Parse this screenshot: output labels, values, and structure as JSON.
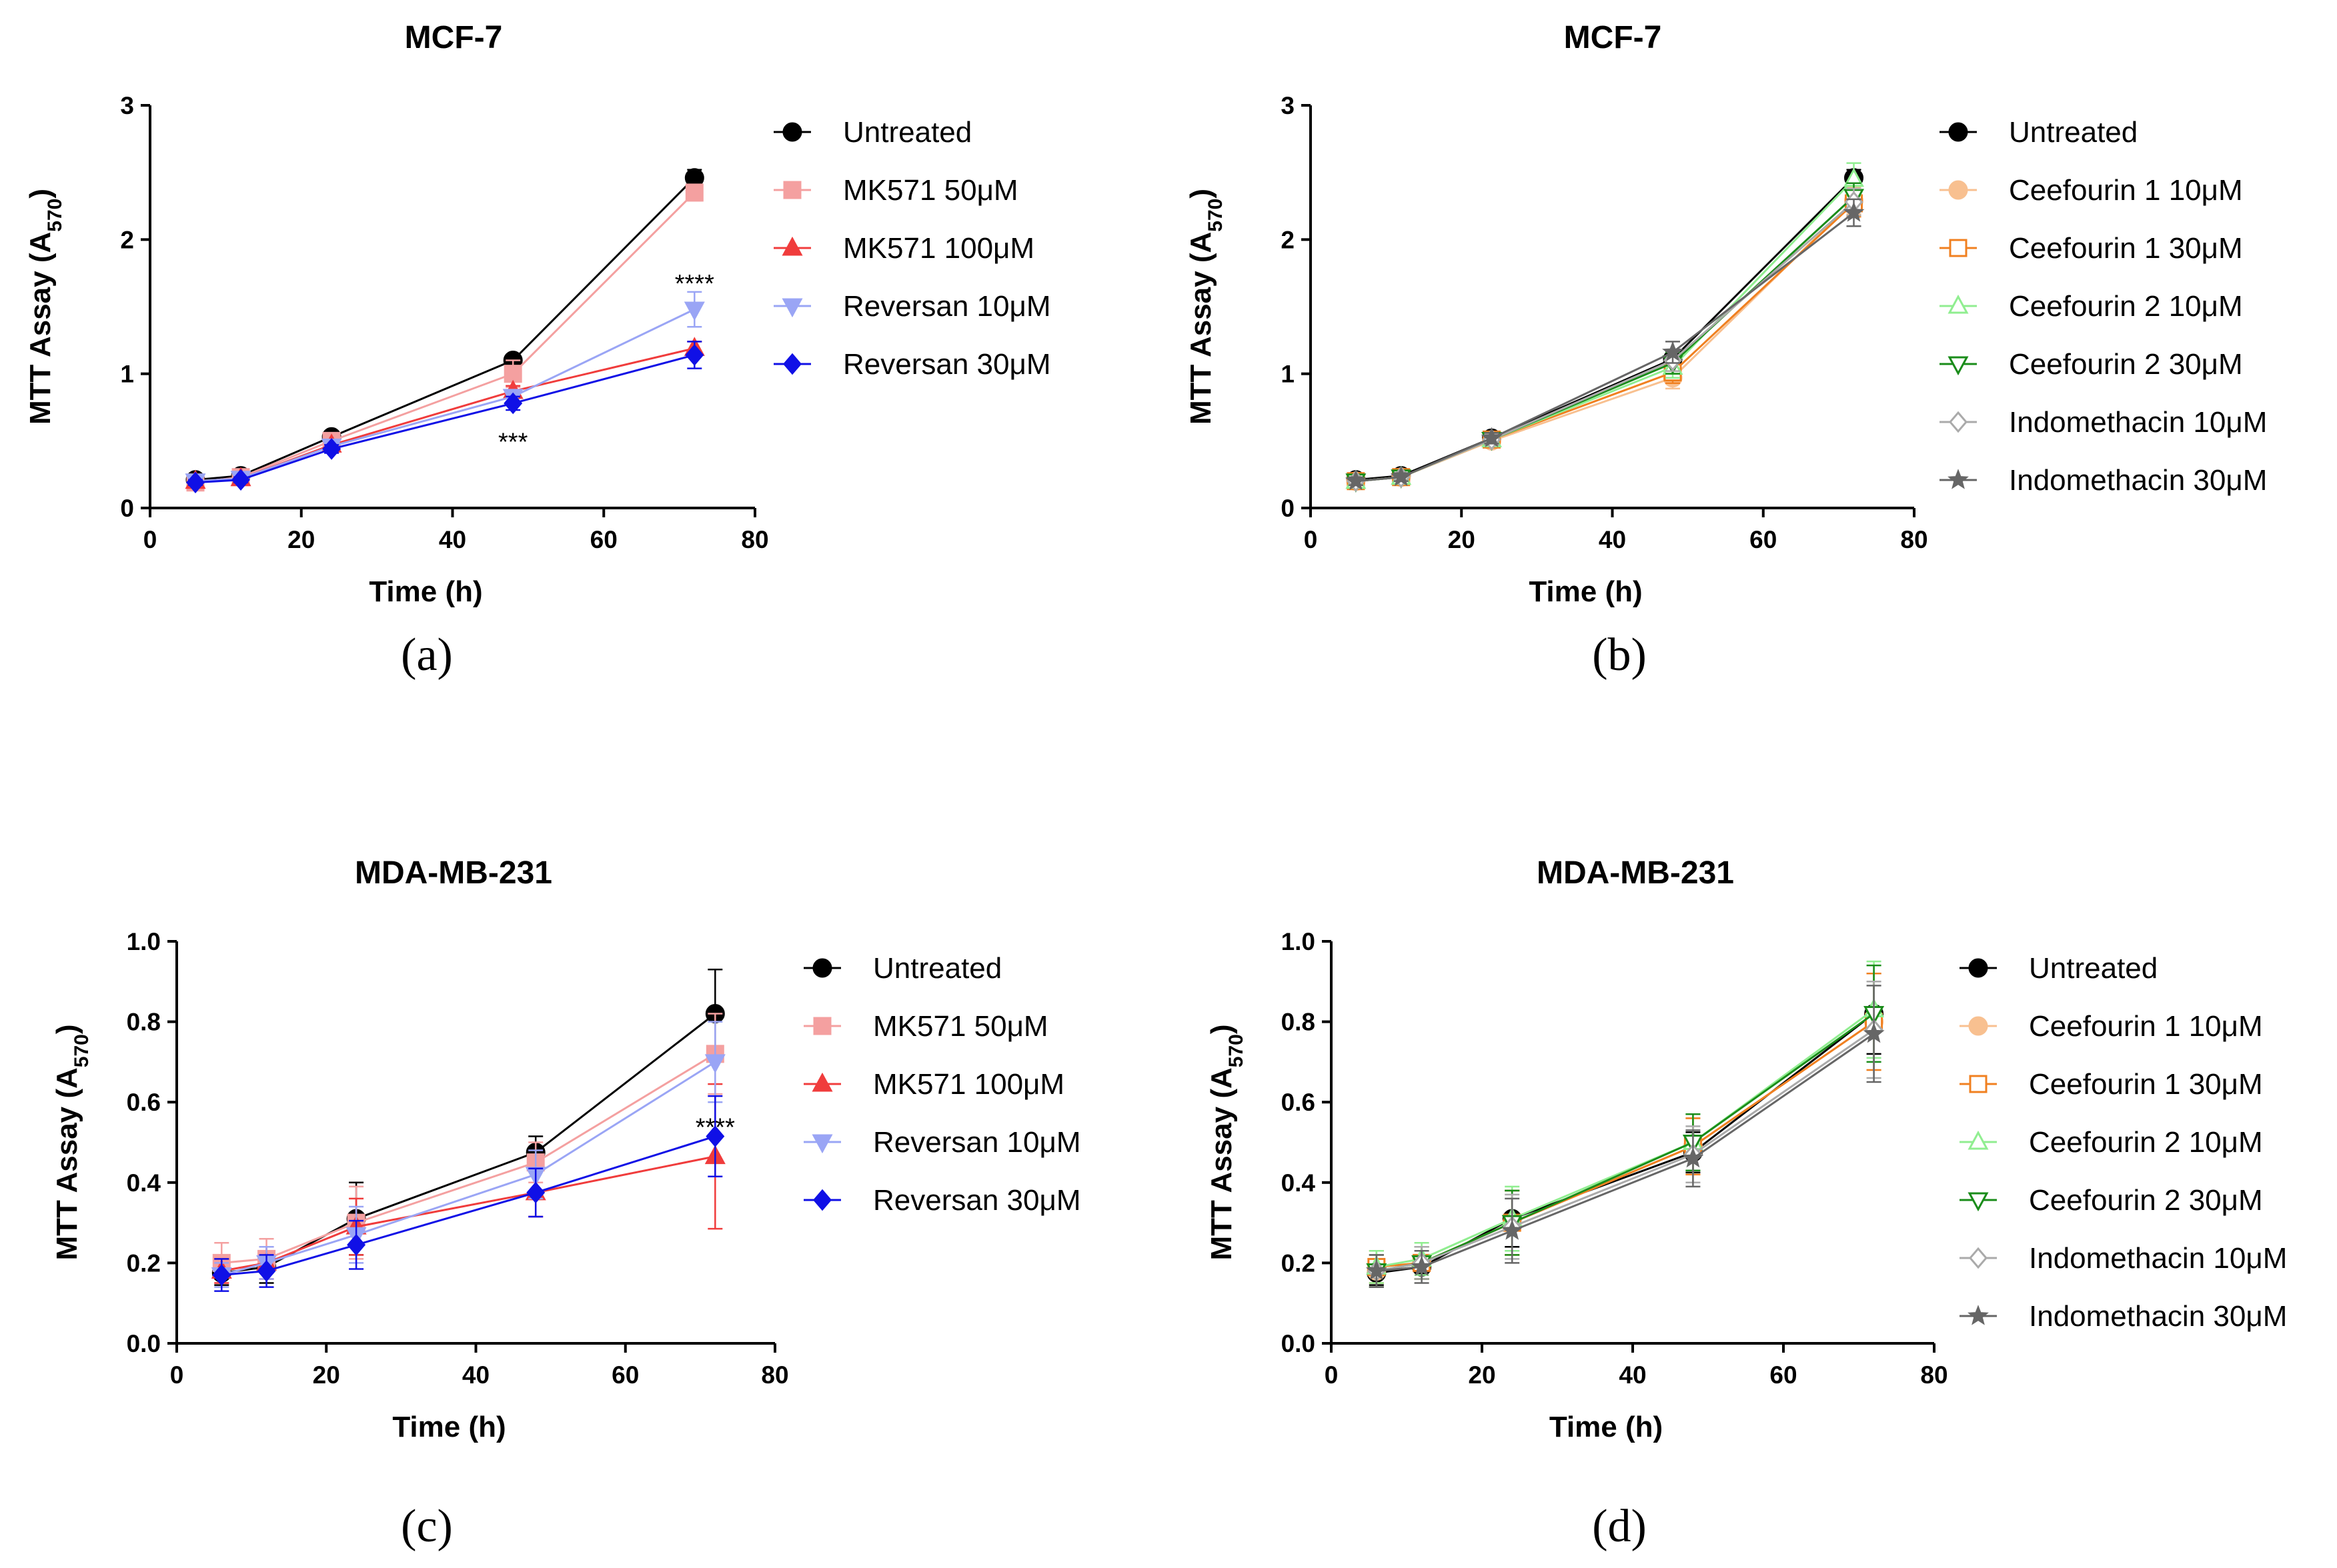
{
  "chart_data": [
    {
      "panel": "(a)",
      "type": "line",
      "title": "MCF-7",
      "xlabel": "Time (h)",
      "ylabel": "MTT Assay (A",
      "ylabel_sub": "570",
      "ylabel_close": ")",
      "xlim": [
        0,
        80
      ],
      "ylim": [
        0,
        3
      ],
      "xticks": [
        0,
        20,
        40,
        60,
        80
      ],
      "yticks": [
        0,
        1,
        2,
        3
      ],
      "x": [
        6,
        12,
        24,
        48,
        72
      ],
      "series": [
        {
          "name": "Untreated",
          "color": "#000000",
          "marker": "circle",
          "values": [
            0.21,
            0.24,
            0.53,
            1.1,
            2.46
          ],
          "errors": [
            0.03,
            0.03,
            0.04,
            0.04,
            0.06
          ]
        },
        {
          "name": "MK571 50μM",
          "color": "#f4a0a0",
          "marker": "square",
          "values": [
            0.19,
            0.23,
            0.5,
            1.0,
            2.35
          ],
          "errors": [
            0.02,
            0.02,
            0.03,
            0.1,
            0.06
          ]
        },
        {
          "name": "MK571 100μM",
          "color": "#f03c3c",
          "marker": "triangle",
          "values": [
            0.2,
            0.22,
            0.47,
            0.87,
            1.19
          ],
          "errors": [
            0.02,
            0.02,
            0.03,
            0.04,
            0.05
          ]
        },
        {
          "name": "Reversan 10μM",
          "color": "#9aa5f5",
          "marker": "triangle-down",
          "values": [
            0.2,
            0.22,
            0.46,
            0.83,
            1.48
          ],
          "errors": [
            0.02,
            0.02,
            0.03,
            0.05,
            0.13
          ]
        },
        {
          "name": "Reversan 30μM",
          "color": "#1010e6",
          "marker": "diamond",
          "values": [
            0.19,
            0.21,
            0.44,
            0.78,
            1.14
          ],
          "errors": [
            0.02,
            0.02,
            0.03,
            0.05,
            0.1
          ]
        }
      ],
      "annotations": [
        {
          "text": "****",
          "x": 72,
          "y": 1.68
        },
        {
          "text": "***",
          "x": 48,
          "y": 0.5
        }
      ]
    },
    {
      "panel": "(b)",
      "type": "line",
      "title": "MCF-7",
      "xlabel": "Time (h)",
      "ylabel": "MTT Assay (A",
      "ylabel_sub": "570",
      "ylabel_close": ")",
      "xlim": [
        0,
        80
      ],
      "ylim": [
        0,
        3
      ],
      "xticks": [
        0,
        20,
        40,
        60,
        80
      ],
      "yticks": [
        0,
        1,
        2,
        3
      ],
      "x": [
        6,
        12,
        24,
        48,
        72
      ],
      "series": [
        {
          "name": "Untreated",
          "color": "#000000",
          "marker": "circle",
          "values": [
            0.21,
            0.24,
            0.52,
            1.11,
            2.46
          ],
          "errors": [
            0.03,
            0.03,
            0.04,
            0.05,
            0.06
          ]
        },
        {
          "name": "Ceefourin 1 10μM",
          "color": "#f8c090",
          "marker": "circle",
          "values": [
            0.2,
            0.23,
            0.5,
            0.97,
            2.29
          ],
          "errors": [
            0.03,
            0.03,
            0.04,
            0.08,
            0.1
          ]
        },
        {
          "name": "Ceefourin 1 30μM",
          "color": "#f08020",
          "marker": "square-open",
          "values": [
            0.2,
            0.23,
            0.51,
            1.01,
            2.27
          ],
          "errors": [
            0.03,
            0.03,
            0.04,
            0.08,
            0.1
          ]
        },
        {
          "name": "Ceefourin 2 10μM",
          "color": "#90ee90",
          "marker": "triangle-open",
          "values": [
            0.2,
            0.23,
            0.51,
            1.05,
            2.45
          ],
          "errors": [
            0.03,
            0.03,
            0.04,
            0.08,
            0.12
          ]
        },
        {
          "name": "Ceefourin 2 30μM",
          "color": "#1a8c1a",
          "marker": "triangle-down-open",
          "values": [
            0.2,
            0.23,
            0.51,
            1.08,
            2.32
          ],
          "errors": [
            0.03,
            0.03,
            0.04,
            0.08,
            0.1
          ]
        },
        {
          "name": "Indomethacin 10μM",
          "color": "#aaaaaa",
          "marker": "diamond-open",
          "values": [
            0.2,
            0.23,
            0.51,
            1.1,
            2.28
          ],
          "errors": [
            0.03,
            0.03,
            0.04,
            0.08,
            0.1
          ]
        },
        {
          "name": "Indomethacin 30μM",
          "color": "#666666",
          "marker": "star",
          "values": [
            0.2,
            0.23,
            0.52,
            1.16,
            2.2
          ],
          "errors": [
            0.03,
            0.03,
            0.04,
            0.08,
            0.1
          ]
        }
      ],
      "annotations": []
    },
    {
      "panel": "(c)",
      "type": "line",
      "title": "MDA-MB-231",
      "xlabel": "Time (h)",
      "ylabel": "MTT Assay (A",
      "ylabel_sub": "570",
      "ylabel_close": ")",
      "xlim": [
        0,
        80
      ],
      "ylim": [
        0,
        1
      ],
      "xticks": [
        0,
        20,
        40,
        60,
        80
      ],
      "yticks": [
        0.0,
        0.2,
        0.4,
        0.6,
        0.8,
        1.0
      ],
      "x": [
        6,
        12,
        24,
        48,
        72
      ],
      "series": [
        {
          "name": "Untreated",
          "color": "#000000",
          "marker": "circle",
          "values": [
            0.175,
            0.19,
            0.31,
            0.475,
            0.82
          ],
          "errors": [
            0.03,
            0.04,
            0.09,
            0.04,
            0.11
          ]
        },
        {
          "name": "MK571 50μM",
          "color": "#f4a0a0",
          "marker": "square",
          "values": [
            0.2,
            0.21,
            0.3,
            0.45,
            0.72
          ],
          "errors": [
            0.05,
            0.05,
            0.09,
            0.05,
            0.1
          ]
        },
        {
          "name": "MK571 100μM",
          "color": "#f03c3c",
          "marker": "triangle",
          "values": [
            0.18,
            0.2,
            0.29,
            0.375,
            0.465
          ],
          "errors": [
            0.03,
            0.04,
            0.07,
            0.06,
            0.18
          ]
        },
        {
          "name": "Reversan 10μM",
          "color": "#9aa5f5",
          "marker": "triangle-down",
          "values": [
            0.17,
            0.2,
            0.27,
            0.42,
            0.7
          ],
          "errors": [
            0.03,
            0.04,
            0.07,
            0.06,
            0.1
          ]
        },
        {
          "name": "Reversan 30μM",
          "color": "#1010e6",
          "marker": "diamond",
          "values": [
            0.17,
            0.18,
            0.245,
            0.375,
            0.515
          ],
          "errors": [
            0.04,
            0.04,
            0.06,
            0.06,
            0.1
          ]
        }
      ],
      "annotations": [
        {
          "text": "****",
          "x": 72,
          "y": 0.54
        }
      ]
    },
    {
      "panel": "(d)",
      "type": "line",
      "title": "MDA-MB-231",
      "xlabel": "Time (h)",
      "ylabel": "MTT Assay (A",
      "ylabel_sub": "570",
      "ylabel_close": ")",
      "xlim": [
        0,
        80
      ],
      "ylim": [
        0,
        1
      ],
      "xticks": [
        0,
        20,
        40,
        60,
        80
      ],
      "yticks": [
        0.0,
        0.2,
        0.4,
        0.6,
        0.8,
        1.0
      ],
      "x": [
        6,
        12,
        24,
        48,
        72
      ],
      "series": [
        {
          "name": "Untreated",
          "color": "#000000",
          "marker": "circle",
          "values": [
            0.175,
            0.19,
            0.31,
            0.475,
            0.82
          ],
          "errors": [
            0.03,
            0.03,
            0.07,
            0.05,
            0.1
          ]
        },
        {
          "name": "Ceefourin 1 10μM",
          "color": "#f8c090",
          "marker": "circle",
          "values": [
            0.18,
            0.2,
            0.3,
            0.49,
            0.8
          ],
          "errors": [
            0.04,
            0.04,
            0.08,
            0.07,
            0.12
          ]
        },
        {
          "name": "Ceefourin 1 30μM",
          "color": "#f08020",
          "marker": "square-open",
          "values": [
            0.19,
            0.2,
            0.3,
            0.49,
            0.8
          ],
          "errors": [
            0.04,
            0.04,
            0.08,
            0.07,
            0.12
          ]
        },
        {
          "name": "Ceefourin 2 10μM",
          "color": "#90ee90",
          "marker": "triangle-open",
          "values": [
            0.19,
            0.21,
            0.31,
            0.5,
            0.83
          ],
          "errors": [
            0.04,
            0.04,
            0.08,
            0.07,
            0.12
          ]
        },
        {
          "name": "Ceefourin 2 30μM",
          "color": "#1a8c1a",
          "marker": "triangle-down-open",
          "values": [
            0.18,
            0.2,
            0.3,
            0.5,
            0.82
          ],
          "errors": [
            0.04,
            0.04,
            0.08,
            0.07,
            0.12
          ]
        },
        {
          "name": "Indomethacin 10μM",
          "color": "#aaaaaa",
          "marker": "diamond-open",
          "values": [
            0.18,
            0.2,
            0.29,
            0.47,
            0.78
          ],
          "errors": [
            0.04,
            0.04,
            0.08,
            0.07,
            0.12
          ]
        },
        {
          "name": "Indomethacin 30μM",
          "color": "#666666",
          "marker": "star",
          "values": [
            0.18,
            0.19,
            0.28,
            0.46,
            0.77
          ],
          "errors": [
            0.04,
            0.04,
            0.08,
            0.07,
            0.12
          ]
        }
      ],
      "annotations": []
    }
  ]
}
